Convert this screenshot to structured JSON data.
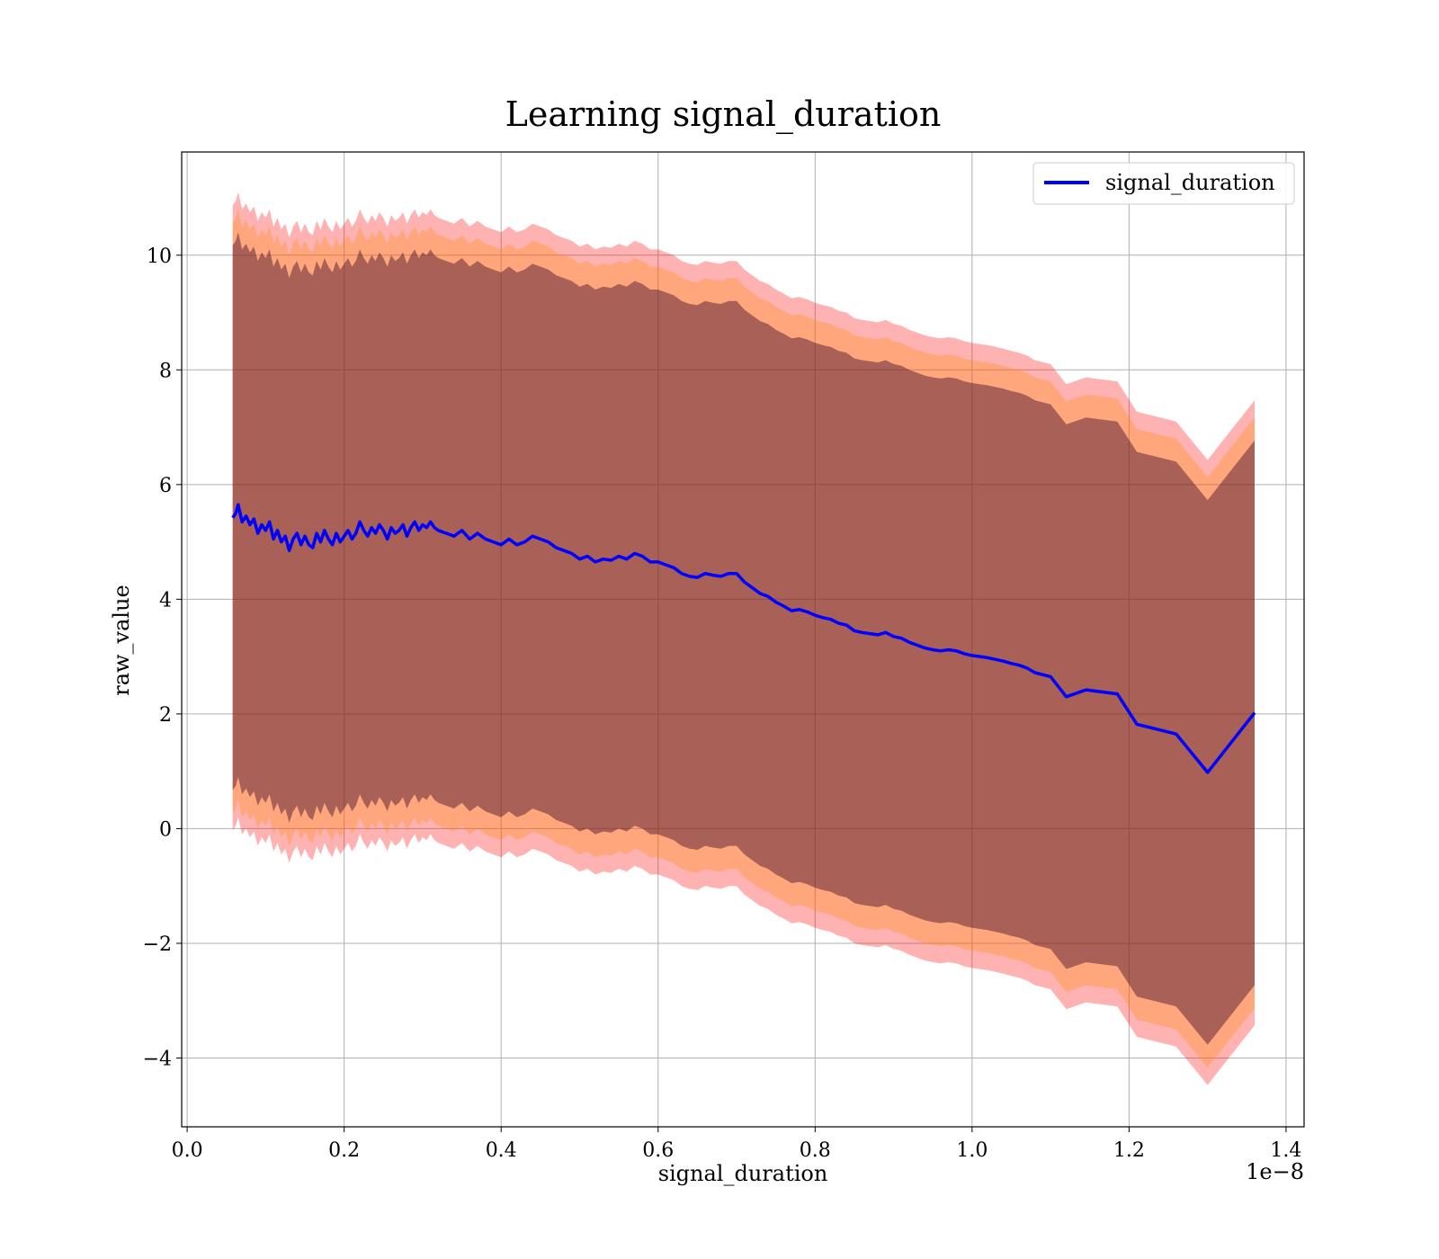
{
  "chart_data": {
    "type": "line",
    "title": "Learning signal_duration",
    "xlabel": "signal_duration",
    "ylabel": "raw_value",
    "x_offset_label": "1e−8",
    "xlim": [
      -0.007,
      1.423
    ],
    "ylim": [
      -5.2,
      11.8
    ],
    "x_ticks": [
      0.0,
      0.2,
      0.4,
      0.6,
      0.8,
      1.0,
      1.2,
      1.4
    ],
    "x_tick_labels": [
      "0.0",
      "0.2",
      "0.4",
      "0.6",
      "0.8",
      "1.0",
      "1.2",
      "1.4"
    ],
    "y_ticks": [
      -4,
      -2,
      0,
      2,
      4,
      6,
      8,
      10
    ],
    "y_tick_labels": [
      "−4",
      "−2",
      "0",
      "2",
      "4",
      "6",
      "8",
      "10"
    ],
    "grid": true,
    "legend_position": "top-right",
    "colors": {
      "line": "#0000ff",
      "band_outer": "#ff0000",
      "band_middle": "#ff8c00",
      "band_inner": "#3d0b2a"
    },
    "band_offsets": {
      "inner": [
        -4.75,
        4.75
      ],
      "middle": [
        -5.15,
        5.15
      ],
      "outer": [
        -5.45,
        5.45
      ]
    },
    "series": [
      {
        "name": "signal_duration",
        "x": [
          0.058,
          0.062,
          0.065,
          0.07,
          0.075,
          0.08,
          0.085,
          0.09,
          0.095,
          0.1,
          0.105,
          0.11,
          0.115,
          0.12,
          0.125,
          0.13,
          0.135,
          0.14,
          0.145,
          0.15,
          0.155,
          0.16,
          0.165,
          0.17,
          0.175,
          0.18,
          0.185,
          0.19,
          0.195,
          0.2,
          0.205,
          0.21,
          0.215,
          0.22,
          0.225,
          0.23,
          0.235,
          0.24,
          0.245,
          0.25,
          0.255,
          0.26,
          0.265,
          0.27,
          0.275,
          0.28,
          0.285,
          0.29,
          0.295,
          0.3,
          0.305,
          0.31,
          0.315,
          0.32,
          0.33,
          0.34,
          0.35,
          0.36,
          0.37,
          0.38,
          0.39,
          0.4,
          0.41,
          0.42,
          0.43,
          0.44,
          0.45,
          0.46,
          0.47,
          0.48,
          0.49,
          0.5,
          0.51,
          0.52,
          0.53,
          0.54,
          0.55,
          0.56,
          0.57,
          0.58,
          0.59,
          0.6,
          0.61,
          0.62,
          0.63,
          0.64,
          0.65,
          0.66,
          0.67,
          0.68,
          0.69,
          0.7,
          0.71,
          0.72,
          0.73,
          0.74,
          0.75,
          0.76,
          0.77,
          0.78,
          0.79,
          0.8,
          0.81,
          0.82,
          0.83,
          0.84,
          0.85,
          0.86,
          0.87,
          0.88,
          0.89,
          0.9,
          0.91,
          0.92,
          0.93,
          0.94,
          0.95,
          0.96,
          0.97,
          0.98,
          0.99,
          1.0,
          1.01,
          1.02,
          1.03,
          1.04,
          1.05,
          1.06,
          1.07,
          1.08,
          1.1,
          1.12,
          1.145,
          1.185,
          1.21,
          1.26,
          1.3,
          1.36
        ],
        "y": [
          5.42,
          5.5,
          5.65,
          5.35,
          5.45,
          5.3,
          5.4,
          5.15,
          5.3,
          5.2,
          5.35,
          5.05,
          5.2,
          5.0,
          5.1,
          4.85,
          5.05,
          5.15,
          4.95,
          5.1,
          4.95,
          4.9,
          5.15,
          5.0,
          5.2,
          5.05,
          4.95,
          5.15,
          5.0,
          5.1,
          5.2,
          5.05,
          5.15,
          5.35,
          5.2,
          5.1,
          5.25,
          5.15,
          5.3,
          5.2,
          5.05,
          5.25,
          5.15,
          5.2,
          5.3,
          5.1,
          5.25,
          5.35,
          5.2,
          5.3,
          5.25,
          5.35,
          5.25,
          5.2,
          5.15,
          5.1,
          5.2,
          5.05,
          5.15,
          5.05,
          5.0,
          4.95,
          5.05,
          4.95,
          5.0,
          5.1,
          5.05,
          5.0,
          4.9,
          4.85,
          4.8,
          4.7,
          4.75,
          4.65,
          4.7,
          4.68,
          4.75,
          4.7,
          4.8,
          4.75,
          4.65,
          4.65,
          4.6,
          4.55,
          4.45,
          4.4,
          4.38,
          4.45,
          4.42,
          4.4,
          4.45,
          4.45,
          4.3,
          4.2,
          4.1,
          4.05,
          3.95,
          3.88,
          3.8,
          3.82,
          3.78,
          3.72,
          3.68,
          3.65,
          3.58,
          3.55,
          3.45,
          3.42,
          3.4,
          3.38,
          3.42,
          3.35,
          3.32,
          3.25,
          3.2,
          3.15,
          3.12,
          3.1,
          3.12,
          3.1,
          3.05,
          3.02,
          3.0,
          2.98,
          2.95,
          2.92,
          2.88,
          2.85,
          2.8,
          2.72,
          2.65,
          2.3,
          2.42,
          2.35,
          1.82,
          1.65,
          0.98,
          2.02
        ]
      }
    ]
  }
}
